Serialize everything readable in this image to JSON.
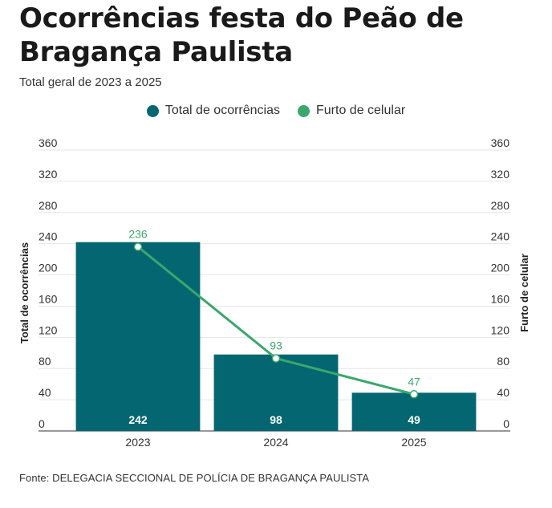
{
  "title": "Ocorrências festa do Peão de Bragança Paulista",
  "subtitle": "Total geral de 2023 a 2025",
  "source": "Fonte: DELEGACIA SECCIONAL DE POLÍCIA DE BRAGANÇA PAULISTA",
  "colors": {
    "bar": "#046670",
    "line": "#3aa76d",
    "grid": "#e6e6e6",
    "text": "#333333"
  },
  "chart_data": {
    "type": "bar",
    "categories": [
      "2023",
      "2024",
      "2025"
    ],
    "series": [
      {
        "name": "Total de ocorrências",
        "type": "bar",
        "axis": "left",
        "values": [
          242,
          98,
          49
        ],
        "color": "#046670"
      },
      {
        "name": "Furto de celular",
        "type": "line",
        "axis": "right",
        "values": [
          236,
          93,
          47
        ],
        "color": "#3aa76d"
      }
    ],
    "ylabel": "Total de ocorrências",
    "ylabel_right": "Furto de celular",
    "ylim": [
      0,
      360
    ],
    "ylim_right": [
      0,
      360
    ],
    "yticks": [
      0,
      40,
      80,
      120,
      160,
      200,
      240,
      280,
      320,
      360
    ],
    "legend": "top-center",
    "grid": true
  }
}
